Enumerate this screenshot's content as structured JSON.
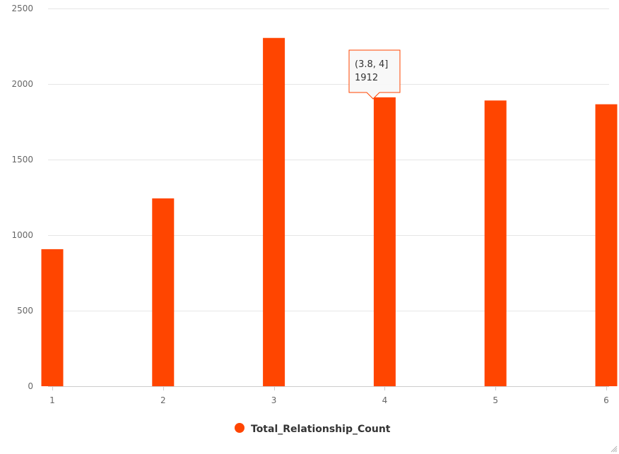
{
  "chart_data": {
    "type": "bar",
    "x": [
      1,
      2,
      3,
      4,
      5,
      6
    ],
    "xticks": [
      "1",
      "2",
      "3",
      "4",
      "5",
      "6"
    ],
    "xlim": [
      1,
      6
    ],
    "ylim": [
      0,
      2500
    ],
    "yticks": [
      "0",
      "500",
      "1000",
      "1500",
      "2000",
      "2500"
    ],
    "series": [
      {
        "name": "Total_Relationship_Count",
        "color": "#ff4500",
        "values": [
          907,
          1243,
          2305,
          1912,
          1891,
          1866
        ]
      }
    ],
    "grid": true,
    "legend_position": "bottom-center",
    "tooltip": {
      "series_index": 0,
      "point_index": 3,
      "line1": "(3.8, 4]",
      "line2": "1912"
    }
  }
}
